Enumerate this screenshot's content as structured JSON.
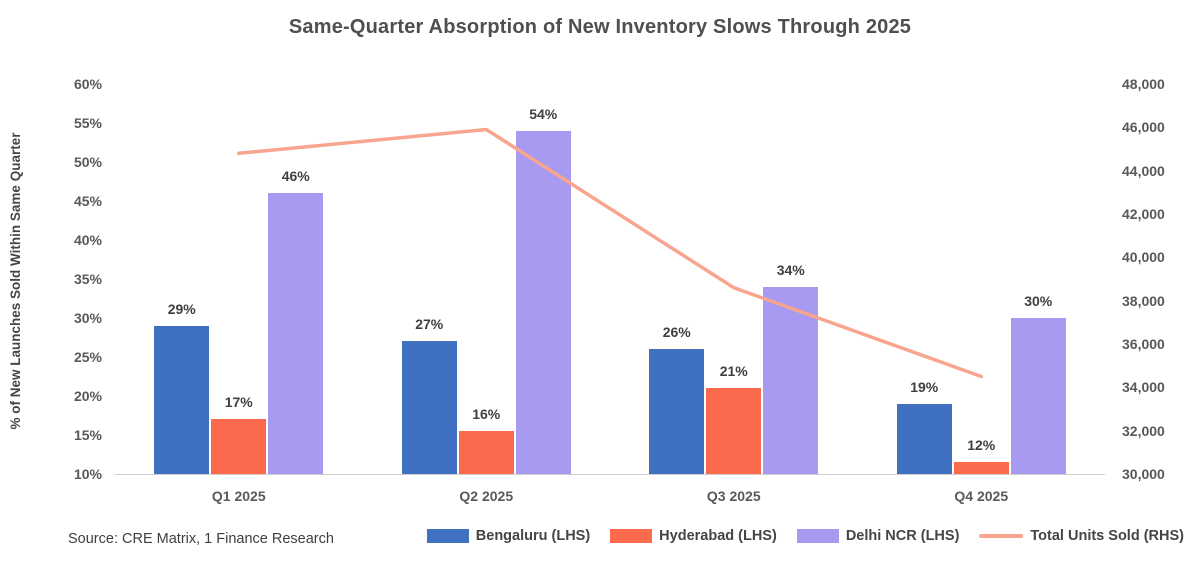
{
  "chart_data": {
    "type": "combo-bar-line",
    "title": "Same-Quarter Absorption of New Inventory Slows Through 2025",
    "categories": [
      "Q1 2025",
      "Q2 2025",
      "Q3 2025",
      "Q4 2025"
    ],
    "left_axis": {
      "title": "% of New Launches Sold Within Same Quarter",
      "min": 10,
      "max": 60,
      "step": 5,
      "unit": "%",
      "ticks": [
        "60%",
        "55%",
        "50%",
        "45%",
        "40%",
        "35%",
        "30%",
        "25%",
        "20%",
        "15%",
        "10%"
      ]
    },
    "right_axis": {
      "min": 30000,
      "max": 48000,
      "step": 2000,
      "ticks": [
        "48,000",
        "46,000",
        "44,000",
        "42,000",
        "40,000",
        "38,000",
        "36,000",
        "34,000",
        "32,000",
        "30,000"
      ]
    },
    "grid": false,
    "legend_position": "bottom",
    "series": [
      {
        "name": "Bengaluru (LHS)",
        "type": "bar",
        "color": "#4070c0",
        "values": [
          29,
          27,
          26,
          19
        ],
        "labels": [
          "29%",
          "27%",
          "26%",
          "19%"
        ],
        "plot_values": [
          29,
          27,
          26,
          19
        ]
      },
      {
        "name": "Hyderabad (LHS)",
        "type": "bar",
        "color": "#fc6a4d",
        "values": [
          17,
          16,
          21,
          12
        ],
        "labels": [
          "17%",
          "16%",
          "21%",
          "12%"
        ],
        "plot_values": [
          17,
          15.5,
          21,
          11.5
        ]
      },
      {
        "name": "Delhi NCR (LHS)",
        "type": "bar",
        "color": "#a79af0",
        "values": [
          46,
          54,
          34,
          30
        ],
        "labels": [
          "46%",
          "54%",
          "34%",
          "30%"
        ],
        "plot_values": [
          46,
          54,
          34,
          30
        ]
      }
    ],
    "line_series": {
      "name": "Total Units Sold (RHS)",
      "type": "line",
      "color": "#f8a58f",
      "values": [
        44800,
        45900,
        38600,
        34500
      ]
    }
  },
  "source": {
    "text": "Source: CRE Matrix, 1 Finance Research"
  }
}
